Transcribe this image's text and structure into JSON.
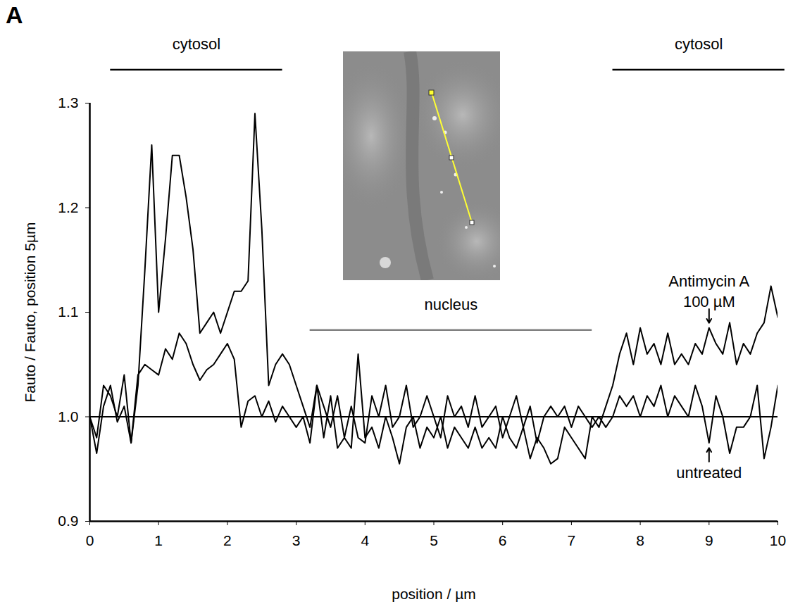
{
  "chart_data": {
    "type": "line",
    "panel_label": "A",
    "x_label": "position / µm",
    "y_label": "Fauto / Fauto, position 5µm",
    "xlim": [
      0,
      10
    ],
    "xticks": [
      0,
      1,
      2,
      3,
      4,
      5,
      6,
      7,
      8,
      9,
      10
    ],
    "ylim": [
      0.9,
      1.3
    ],
    "yticks": [
      0.9,
      {
        "value": 1,
        "label": "1.0"
      },
      1.1,
      1.2,
      1.3
    ],
    "grid": false,
    "reference_lines": [
      1
    ],
    "x": [
      0,
      0.1,
      0.2,
      0.3,
      0.4,
      0.5,
      0.6,
      0.7,
      0.8,
      0.9,
      1,
      1.1,
      1.2,
      1.3,
      1.4,
      1.5,
      1.6,
      1.7,
      1.8,
      1.9,
      2,
      2.1,
      2.2,
      2.3,
      2.4,
      2.5,
      2.6,
      2.7,
      2.8,
      2.9,
      3,
      3.1,
      3.2,
      3.3,
      3.4,
      3.5,
      3.6,
      3.7,
      3.8,
      3.9,
      4,
      4.1,
      4.2,
      4.3,
      4.4,
      4.5,
      4.6,
      4.7,
      4.8,
      4.9,
      5,
      5.1,
      5.2,
      5.3,
      5.4,
      5.5,
      5.6,
      5.7,
      5.8,
      5.9,
      6,
      6.1,
      6.2,
      6.3,
      6.4,
      6.5,
      6.6,
      6.7,
      6.8,
      6.9,
      7,
      7.1,
      7.2,
      7.3,
      7.4,
      7.5,
      7.6,
      7.7,
      7.8,
      7.9,
      8,
      8.1,
      8.2,
      8.3,
      8.4,
      8.5,
      8.6,
      8.7,
      8.8,
      8.9,
      9,
      9.1,
      9.2,
      9.3,
      9.4,
      9.5,
      9.6,
      9.7,
      9.8,
      9.9,
      10
    ],
    "series": [
      {
        "name": "Antimycin A 100 µM",
        "color": "#000000",
        "line_style": "solid",
        "values": [
          1.0,
          0.98,
          1.03,
          1.02,
          1.0,
          1.04,
          0.975,
          1.03,
          1.14,
          1.26,
          1.1,
          1.17,
          1.25,
          1.25,
          1.21,
          1.16,
          1.08,
          1.09,
          1.1,
          1.08,
          1.1,
          1.12,
          1.12,
          1.13,
          1.29,
          1.18,
          1.03,
          1.05,
          1.06,
          1.05,
          1.03,
          1.01,
          0.99,
          1.03,
          0.98,
          1.02,
          0.97,
          0.98,
          0.97,
          1.06,
          0.98,
          0.99,
          0.97,
          1.0,
          0.98,
          0.955,
          0.99,
          1.0,
          0.97,
          0.99,
          0.98,
          1.0,
          0.97,
          0.99,
          0.98,
          0.97,
          0.99,
          0.97,
          0.98,
          0.97,
          1.0,
          0.98,
          0.97,
          0.99,
          0.96,
          0.98,
          0.97,
          0.955,
          0.96,
          0.99,
          0.98,
          0.97,
          0.96,
          1.0,
          0.99,
          1.01,
          1.03,
          1.06,
          1.08,
          1.05,
          1.085,
          1.06,
          1.07,
          1.05,
          1.08,
          1.05,
          1.06,
          1.05,
          1.07,
          1.06,
          1.085,
          1.07,
          1.06,
          1.09,
          1.05,
          1.07,
          1.06,
          1.08,
          1.09,
          1.125,
          1.095
        ]
      },
      {
        "name": "untreated",
        "color": "#000000",
        "line_style": "solid",
        "values": [
          1.0,
          0.965,
          1.01,
          1.03,
          0.995,
          1.01,
          0.975,
          1.04,
          1.05,
          1.045,
          1.04,
          1.065,
          1.055,
          1.08,
          1.07,
          1.05,
          1.035,
          1.045,
          1.05,
          1.06,
          1.07,
          1.055,
          0.99,
          1.015,
          1.02,
          1.0,
          1.015,
          0.995,
          1.01,
          1.0,
          0.99,
          1.0,
          0.975,
          1.03,
          1.01,
          0.99,
          1.02,
          0.98,
          1.01,
          0.98,
          0.975,
          1.02,
          1.0,
          1.03,
          0.99,
          1.0,
          1.03,
          0.99,
          1.0,
          1.02,
          1.0,
          0.98,
          1.02,
          1.0,
          1.01,
          0.99,
          1.02,
          0.99,
          1.0,
          1.01,
          0.98,
          1.0,
          1.02,
          0.99,
          1.01,
          0.975,
          1.0,
          1.01,
          1.0,
          1.01,
          0.99,
          1.01,
          1.0,
          0.99,
          1.0,
          0.99,
          1.0,
          1.02,
          1.01,
          1.02,
          1.0,
          1.02,
          1.01,
          1.03,
          1.0,
          1.02,
          1.01,
          1.0,
          1.03,
          1.01,
          0.975,
          1.02,
          1.0,
          0.965,
          0.99,
          0.99,
          1.0,
          1.03,
          0.96,
          0.99,
          1.03
        ]
      }
    ],
    "regions": [
      {
        "text": "cytosol",
        "x": [
          0.3,
          2.8
        ],
        "y": 1.332,
        "color": "#000000"
      },
      {
        "text": "nucleus",
        "x": [
          3.2,
          7.3
        ],
        "y": 1.083,
        "color": "#808080"
      },
      {
        "text": "cytosol",
        "x": [
          7.6,
          10.1
        ],
        "y": 1.332,
        "color": "#000000"
      }
    ],
    "annotations": [
      {
        "text": "Antimycin A 100 µM",
        "x": 9,
        "y": 1.085,
        "arrow": "down"
      },
      {
        "text": "untreated",
        "x": 9,
        "y": 0.975,
        "arrow": "up"
      }
    ],
    "legend": false
  }
}
